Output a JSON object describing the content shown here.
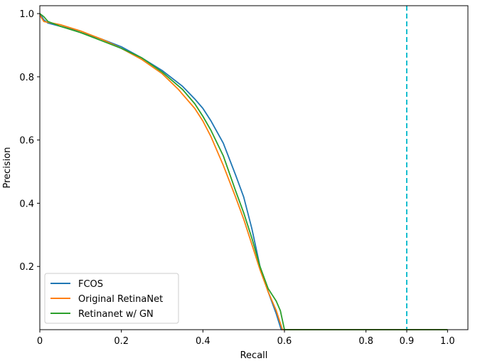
{
  "chart_data": {
    "type": "line",
    "title": "",
    "xlabel": "Recall",
    "ylabel": "Precision",
    "xlim": [
      0,
      1.05
    ],
    "ylim": [
      0,
      1.025
    ],
    "grid": false,
    "legend_position": "bottom-left",
    "x_ticks": [
      {
        "value": 0,
        "label": "0"
      },
      {
        "value": 0.2,
        "label": "0.2"
      },
      {
        "value": 0.4,
        "label": "0.4"
      },
      {
        "value": 0.6,
        "label": "0.6"
      },
      {
        "value": 0.8,
        "label": "0.8"
      },
      {
        "value": 0.9,
        "label": "0.9"
      },
      {
        "value": 1.0,
        "label": "1.0"
      }
    ],
    "y_ticks": [
      {
        "value": 0.2,
        "label": "0.2"
      },
      {
        "value": 0.4,
        "label": "0.4"
      },
      {
        "value": 0.6,
        "label": "0.6"
      },
      {
        "value": 0.8,
        "label": "0.8"
      },
      {
        "value": 1.0,
        "label": "1.0"
      }
    ],
    "reference_line": {
      "x": 0.9,
      "style": "dashed",
      "color": "#17becf"
    },
    "series": [
      {
        "name": "FCOS",
        "color": "#1f77b4",
        "points": [
          [
            0,
            1.0
          ],
          [
            0.01,
            0.98
          ],
          [
            0.02,
            0.97
          ],
          [
            0.05,
            0.96
          ],
          [
            0.08,
            0.95
          ],
          [
            0.1,
            0.94
          ],
          [
            0.15,
            0.92
          ],
          [
            0.2,
            0.895
          ],
          [
            0.25,
            0.86
          ],
          [
            0.3,
            0.82
          ],
          [
            0.35,
            0.77
          ],
          [
            0.38,
            0.73
          ],
          [
            0.4,
            0.7
          ],
          [
            0.42,
            0.66
          ],
          [
            0.45,
            0.59
          ],
          [
            0.48,
            0.49
          ],
          [
            0.5,
            0.42
          ],
          [
            0.52,
            0.32
          ],
          [
            0.54,
            0.2
          ],
          [
            0.56,
            0.12
          ],
          [
            0.58,
            0.05
          ],
          [
            0.592,
            0.0
          ],
          [
            0.6,
            0.0
          ],
          [
            1.0,
            0.0
          ]
        ]
      },
      {
        "name": "Original RetinaNet",
        "color": "#ff7f0e",
        "points": [
          [
            0,
            0.995
          ],
          [
            0.01,
            0.975
          ],
          [
            0.03,
            0.97
          ],
          [
            0.05,
            0.965
          ],
          [
            0.1,
            0.945
          ],
          [
            0.15,
            0.92
          ],
          [
            0.2,
            0.89
          ],
          [
            0.25,
            0.855
          ],
          [
            0.3,
            0.81
          ],
          [
            0.34,
            0.76
          ],
          [
            0.38,
            0.7
          ],
          [
            0.4,
            0.66
          ],
          [
            0.42,
            0.61
          ],
          [
            0.45,
            0.52
          ],
          [
            0.48,
            0.42
          ],
          [
            0.5,
            0.35
          ],
          [
            0.52,
            0.27
          ],
          [
            0.54,
            0.19
          ],
          [
            0.56,
            0.12
          ],
          [
            0.58,
            0.06
          ],
          [
            0.595,
            0.0
          ],
          [
            0.6,
            0.0
          ],
          [
            1.0,
            0.0
          ]
        ]
      },
      {
        "name": "Retinanet w/ GN",
        "color": "#2ca02c",
        "points": [
          [
            0,
            1.0
          ],
          [
            0.01,
            0.99
          ],
          [
            0.02,
            0.975
          ],
          [
            0.05,
            0.96
          ],
          [
            0.1,
            0.94
          ],
          [
            0.15,
            0.915
          ],
          [
            0.2,
            0.89
          ],
          [
            0.25,
            0.86
          ],
          [
            0.3,
            0.815
          ],
          [
            0.35,
            0.76
          ],
          [
            0.38,
            0.715
          ],
          [
            0.4,
            0.675
          ],
          [
            0.42,
            0.63
          ],
          [
            0.45,
            0.55
          ],
          [
            0.48,
            0.44
          ],
          [
            0.5,
            0.37
          ],
          [
            0.52,
            0.29
          ],
          [
            0.54,
            0.2
          ],
          [
            0.56,
            0.13
          ],
          [
            0.58,
            0.09
          ],
          [
            0.59,
            0.06
          ],
          [
            0.6,
            0.0
          ],
          [
            1.0,
            0.0
          ]
        ]
      }
    ]
  }
}
